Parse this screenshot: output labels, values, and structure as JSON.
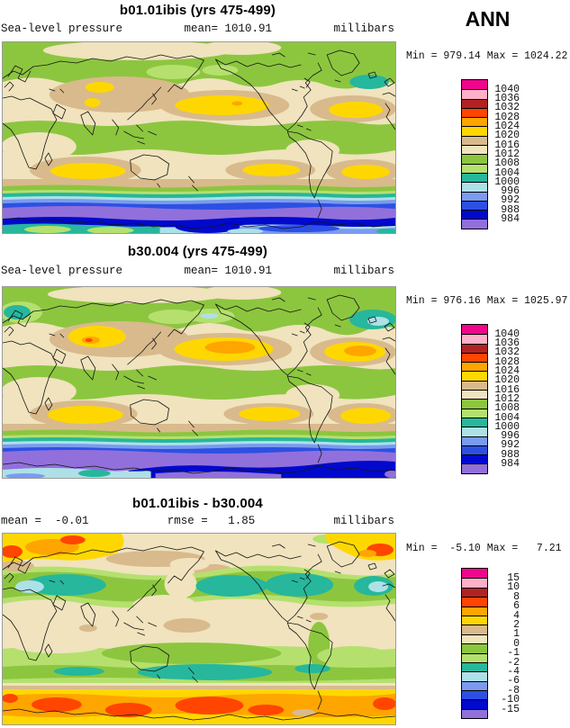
{
  "header": {
    "season_label": "ANN"
  },
  "panels": [
    {
      "title": "b01.01ibis (yrs 475-499)",
      "field_label": "Sea-level pressure",
      "mean_label": "mean= 1010.91",
      "units_label": "millibars",
      "minmax": "Min = 979.14 Max = 1024.22",
      "legend": {
        "levels": [
          "1040",
          "1036",
          "1032",
          "1028",
          "1024",
          "1020",
          "1016",
          "1012",
          "1008",
          "1004",
          "1000",
          "996",
          "992",
          "988",
          "984"
        ],
        "colors": [
          "#f0068c",
          "#ffb0c8",
          "#b22222",
          "#ff4500",
          "#ffa500",
          "#ffd700",
          "#d9ba8c",
          "#f0e3be",
          "#8cc63f",
          "#b5e06e",
          "#26b79c",
          "#aee0e8",
          "#7a9bef",
          "#2d50e3",
          "#0009cd",
          "#9170db"
        ]
      }
    },
    {
      "title": "b30.004 (yrs 475-499)",
      "field_label": "Sea-level pressure",
      "mean_label": "mean= 1010.91",
      "units_label": "millibars",
      "minmax": "Min = 976.16 Max = 1025.97",
      "legend": {
        "levels": [
          "1040",
          "1036",
          "1032",
          "1028",
          "1024",
          "1020",
          "1016",
          "1012",
          "1008",
          "1004",
          "1000",
          "996",
          "992",
          "988",
          "984"
        ],
        "colors": [
          "#f0068c",
          "#ffb0c8",
          "#b22222",
          "#ff4500",
          "#ffa500",
          "#ffd700",
          "#d9ba8c",
          "#f0e3be",
          "#8cc63f",
          "#b5e06e",
          "#26b79c",
          "#aee0e8",
          "#7a9bef",
          "#2d50e3",
          "#0009cd",
          "#9170db"
        ]
      }
    },
    {
      "title": "b01.01ibis - b30.004",
      "mean_label": "mean =  -0.01",
      "rmse_label": "rmse =   1.85",
      "units_label": "millibars",
      "minmax": "Min =  -5.10 Max =   7.21",
      "legend": {
        "levels": [
          "15",
          "10",
          "8",
          "6",
          "4",
          "2",
          "1",
          "0",
          "-1",
          "-2",
          "-4",
          "-6",
          "-8",
          "-10",
          "-15"
        ],
        "colors": [
          "#f0068c",
          "#ffb0c8",
          "#b22222",
          "#ff4500",
          "#ffa500",
          "#ffd700",
          "#d9ba8c",
          "#f0e3be",
          "#8cc63f",
          "#b5e06e",
          "#26b79c",
          "#aee0e8",
          "#7a9bef",
          "#2d50e3",
          "#0009cd",
          "#9170db"
        ]
      }
    }
  ],
  "chart_data": [
    {
      "type": "heatmap",
      "subtype": "filled-contour world map (lat-lon)",
      "title": "b01.01ibis (yrs 475-499)",
      "variable": "Sea-level pressure",
      "units": "millibars",
      "season": "ANN",
      "mean": 1010.91,
      "min": 979.14,
      "max": 1024.22,
      "contour_levels": [
        984,
        988,
        992,
        996,
        1000,
        1004,
        1008,
        1012,
        1016,
        1020,
        1024,
        1028,
        1032,
        1036,
        1040
      ],
      "palette_low_to_high": [
        "#9170db",
        "#0009cd",
        "#2d50e3",
        "#7a9bef",
        "#aee0e8",
        "#26b79c",
        "#b5e06e",
        "#8cc63f",
        "#f0e3be",
        "#d9ba8c",
        "#ffd700",
        "#ffa500",
        "#ff4500",
        "#b22222",
        "#ffb0c8",
        "#f0068c"
      ],
      "projection": "equirectangular, longitude 0E to 360E, latitude 90N to 90S",
      "legend_position": "right",
      "notable_features": [
        "subtropical highs (yellow) over N/S Pacific, Atlantic and Indian oceans",
        "circumpolar low-pressure belt (blue/purple, <=984 mb) around Antarctica",
        "green belt ~1008-1012 mb through tropics and Arctic"
      ]
    },
    {
      "type": "heatmap",
      "subtype": "filled-contour world map (lat-lon)",
      "title": "b30.004 (yrs 475-499)",
      "variable": "Sea-level pressure",
      "units": "millibars",
      "season": "ANN",
      "mean": 1010.91,
      "min": 976.16,
      "max": 1025.97,
      "contour_levels": [
        984,
        988,
        992,
        996,
        1000,
        1004,
        1008,
        1012,
        1016,
        1020,
        1024,
        1028,
        1032,
        1036,
        1040
      ],
      "palette_low_to_high": [
        "#9170db",
        "#0009cd",
        "#2d50e3",
        "#7a9bef",
        "#aee0e8",
        "#26b79c",
        "#b5e06e",
        "#8cc63f",
        "#f0e3be",
        "#d9ba8c",
        "#ffd700",
        "#ffa500",
        "#ff4500",
        "#b22222",
        "#ffb0c8",
        "#f0068c"
      ],
      "projection": "equirectangular, longitude 0E to 360E, latitude 90N to 90S",
      "legend_position": "right",
      "notable_features": [
        "stronger subtropical highs (orange cores >1024 mb)",
        "wider purple circumpolar low belt (<984 mb)",
        "teal lows over Scandinavia and near Greenland"
      ]
    },
    {
      "type": "heatmap",
      "subtype": "difference map (case1 minus case2)",
      "title": "b01.01ibis - b30.004",
      "variable": "Sea-level pressure difference",
      "units": "millibars",
      "season": "ANN",
      "mean": -0.01,
      "rmse": 1.85,
      "min": -5.1,
      "max": 7.21,
      "contour_levels": [
        -15,
        -10,
        -8,
        -6,
        -4,
        -2,
        -1,
        0,
        1,
        2,
        4,
        6,
        8,
        10,
        15
      ],
      "palette_low_to_high": [
        "#9170db",
        "#0009cd",
        "#2d50e3",
        "#7a9bef",
        "#aee0e8",
        "#26b79c",
        "#b5e06e",
        "#8cc63f",
        "#f0e3be",
        "#d9ba8c",
        "#ffd700",
        "#ffa500",
        "#ff4500",
        "#b22222",
        "#ffb0c8",
        "#f0068c"
      ],
      "projection": "equirectangular, longitude 0E to 360E, latitude 90N to 90S",
      "legend_position": "right",
      "notable_features": [
        "positive differences (yellow/orange/red, +2 to +8 mb) around Antarctica and Arctic",
        "negative differences (green/teal, -1 to -4 mb) in northern mid-latitudes and ~60S belt",
        "near-zero (beige) through the tropics"
      ]
    }
  ]
}
